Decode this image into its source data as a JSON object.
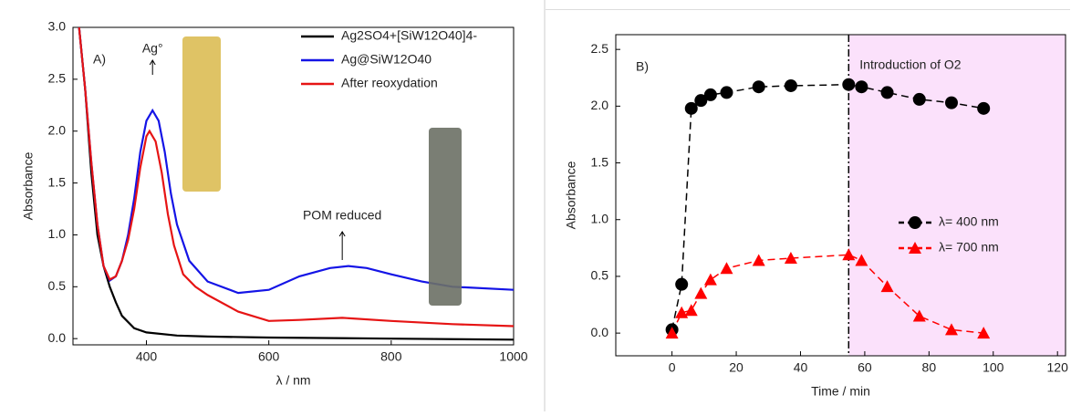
{
  "chart_data": [
    {
      "type": "line",
      "panel_label": "A)",
      "x_label": "λ / nm",
      "y_label": "Absorbance",
      "xlim": [
        280,
        1000
      ],
      "ylim": [
        -0.06,
        3.0
      ],
      "xticks": [
        400,
        600,
        800,
        1000
      ],
      "yticks": [
        {
          "value": 0,
          "label": "0.0"
        },
        0.5,
        {
          "value": 1,
          "label": "1.0"
        },
        1.5,
        {
          "value": 2,
          "label": "2.0"
        },
        2.5,
        {
          "value": 3,
          "label": "3.0"
        }
      ],
      "legend": "upper right",
      "annotations": [
        "Ag°",
        "POM reduced"
      ],
      "series": [
        {
          "name": "Ag2SO4+[SiW12O40]4-",
          "color": "#000000",
          "x": [
            290,
            300,
            310,
            320,
            330,
            340,
            350,
            360,
            380,
            400,
            450,
            500,
            600,
            800,
            1000
          ],
          "values": [
            3.0,
            2.4,
            1.6,
            1.0,
            0.7,
            0.5,
            0.35,
            0.22,
            0.1,
            0.06,
            0.03,
            0.02,
            0.01,
            0.0,
            -0.01
          ]
        },
        {
          "name": "Ag@SiW12O40",
          "color": "#1414e6",
          "x": [
            290,
            300,
            310,
            320,
            330,
            340,
            350,
            360,
            370,
            380,
            390,
            400,
            410,
            420,
            430,
            440,
            450,
            470,
            500,
            550,
            600,
            650,
            700,
            730,
            760,
            800,
            850,
            900,
            1000
          ],
          "values": [
            3.0,
            2.4,
            1.7,
            1.1,
            0.7,
            0.56,
            0.6,
            0.75,
            1.0,
            1.35,
            1.8,
            2.1,
            2.2,
            2.1,
            1.8,
            1.4,
            1.1,
            0.75,
            0.55,
            0.44,
            0.47,
            0.6,
            0.68,
            0.7,
            0.68,
            0.62,
            0.55,
            0.5,
            0.47
          ]
        },
        {
          "name": "After reoxydation",
          "color": "#e61414",
          "x": [
            290,
            300,
            310,
            320,
            330,
            340,
            350,
            360,
            370,
            380,
            390,
            400,
            405,
            415,
            425,
            435,
            445,
            460,
            480,
            500,
            550,
            600,
            650,
            720,
            800,
            900,
            1000
          ],
          "values": [
            3.0,
            2.4,
            1.7,
            1.1,
            0.7,
            0.57,
            0.6,
            0.75,
            0.95,
            1.25,
            1.65,
            1.95,
            2.0,
            1.9,
            1.6,
            1.2,
            0.9,
            0.62,
            0.5,
            0.42,
            0.26,
            0.17,
            0.18,
            0.2,
            0.17,
            0.14,
            0.12
          ]
        }
      ]
    },
    {
      "type": "line",
      "panel_label": "B)",
      "x_label": "Time / min",
      "y_label": "Absorbance",
      "xlim": [
        -17.5,
        122.5
      ],
      "ylim": [
        -0.2,
        2.63
      ],
      "xticks": [
        0,
        20,
        40,
        60,
        80,
        100,
        120
      ],
      "yticks": [
        {
          "value": 0,
          "label": "0.0"
        },
        0.5,
        {
          "value": 1,
          "label": "1.0"
        },
        1.5,
        {
          "value": 2,
          "label": "2.0"
        },
        2.5
      ],
      "legend": "center right",
      "highlight_start": 55,
      "highlight_color": "#fbe1fb",
      "highlight_label": "Introduction of O2",
      "series": [
        {
          "name": "λ= 400 nm",
          "color": "#000000",
          "marker": "circle",
          "x": [
            0,
            3,
            6,
            9,
            12,
            17,
            27,
            37,
            55,
            59,
            67,
            77,
            87,
            97
          ],
          "values": [
            0.03,
            0.43,
            1.98,
            2.05,
            2.1,
            2.12,
            2.17,
            2.18,
            2.19,
            2.17,
            2.12,
            2.06,
            2.03,
            1.98
          ]
        },
        {
          "name": "λ= 700 nm",
          "color": "#ff0000",
          "marker": "triangle",
          "x": [
            0,
            3,
            6,
            9,
            12,
            17,
            27,
            37,
            55,
            59,
            67,
            77,
            87,
            97
          ],
          "values": [
            0.0,
            0.18,
            0.2,
            0.35,
            0.47,
            0.57,
            0.64,
            0.66,
            0.69,
            0.64,
            0.41,
            0.15,
            0.03,
            0.0
          ]
        }
      ]
    }
  ]
}
